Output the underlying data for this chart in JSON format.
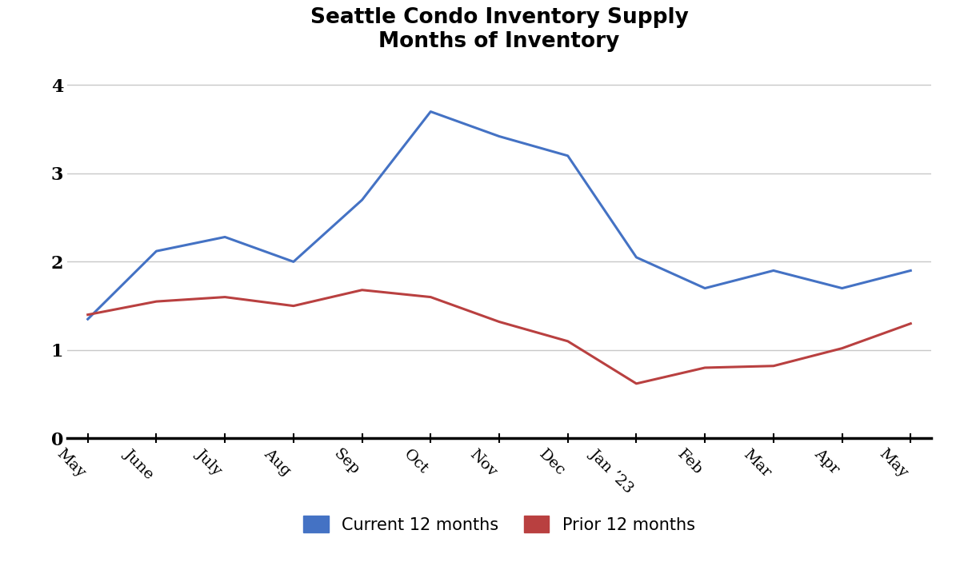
{
  "title": "Seattle Condo Inventory Supply\nMonths of Inventory",
  "categories": [
    "May",
    "June",
    "July",
    "Aug",
    "Sep",
    "Oct",
    "Nov",
    "Dec",
    "Jan ’23",
    "Feb",
    "Mar",
    "Apr",
    "May"
  ],
  "current_12": [
    1.35,
    2.12,
    2.28,
    2.0,
    2.7,
    3.7,
    3.42,
    3.2,
    2.05,
    1.7,
    1.9,
    1.7,
    1.9
  ],
  "prior_12": [
    1.4,
    1.55,
    1.6,
    1.5,
    1.68,
    1.6,
    1.32,
    1.1,
    0.62,
    0.8,
    0.82,
    1.02,
    1.3
  ],
  "current_color": "#4472C4",
  "prior_color": "#B94040",
  "current_label": "Current 12 months",
  "prior_label": "Prior 12 months",
  "ylim": [
    0,
    4.2
  ],
  "yticks": [
    0,
    1,
    2,
    3,
    4
  ],
  "line_width": 2.2,
  "background_color": "#ffffff",
  "grid_color": "#c8c8c8",
  "title_fontsize": 19,
  "tick_fontsize": 14,
  "legend_fontsize": 15
}
